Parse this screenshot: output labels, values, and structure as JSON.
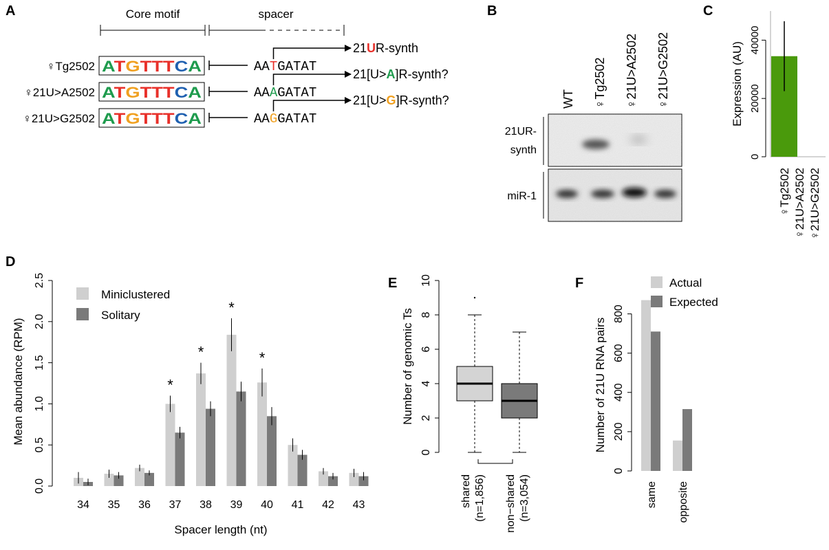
{
  "panels": {
    "A": {
      "label": "A",
      "core_header": "Core motif",
      "spacer_header": "spacer",
      "rows": [
        {
          "name": "♀Tg2502",
          "motif": "ATGTTTCA",
          "prefix": "AA",
          "var": "T",
          "suffix": "GATAT",
          "var_color": "#e8302a",
          "product_pre": "21",
          "product_mark": "U",
          "product_post": "R-synth",
          "mark_color": "#e8302a"
        },
        {
          "name": "♀21U>A2502",
          "motif": "ATGTTTCA",
          "prefix": "AA",
          "var": "A",
          "suffix": "GATAT",
          "var_color": "#1e9b4d",
          "product_pre": "21[U>",
          "product_mark": "A",
          "product_post": "]R-synth?",
          "mark_color": "#1e9b4d"
        },
        {
          "name": "♀21U>G2502",
          "motif": "ATGTTTCA",
          "prefix": "AA",
          "var": "G",
          "suffix": "GATAT",
          "var_color": "#f0a020",
          "product_pre": "21[U>",
          "product_mark": "G",
          "product_post": "]R-synth?",
          "mark_color": "#f0a020"
        }
      ],
      "motif_colors": [
        "#1e9b4d",
        "#e8302a",
        "#f0a020",
        "#e8302a",
        "#e8302a",
        "#e8302a",
        "#1f60b0",
        "#1e9b4d"
      ]
    },
    "B": {
      "label": "B",
      "lanes": [
        "WT",
        "♀Tg2502",
        "♀21U>A2502",
        "♀21U>G2502"
      ],
      "row_labels": [
        "21UR-",
        "synth",
        "miR-1"
      ]
    }
  },
  "chart_data": [
    {
      "panel": "C",
      "type": "bar",
      "categories": [
        "♀Tg2502",
        "♀21U>A2502",
        "♀21U>G2502"
      ],
      "values": [
        34500,
        0,
        0
      ],
      "error_low": [
        22500,
        0,
        0
      ],
      "error_high": [
        46500,
        0,
        0
      ],
      "ylabel": "Expression (AU)",
      "ylim": [
        0,
        50000
      ],
      "yticks": [
        "0",
        "20000",
        "40000"
      ],
      "ytick_values": [
        0,
        20000,
        40000
      ],
      "color": "#4a9a0c"
    },
    {
      "panel": "D",
      "type": "bar",
      "categories": [
        "34",
        "35",
        "36",
        "37",
        "38",
        "39",
        "40",
        "41",
        "42",
        "43"
      ],
      "series": [
        {
          "name": "Miniclustered",
          "color": "#cfcfcf",
          "values": [
            0.1,
            0.15,
            0.22,
            1.0,
            1.37,
            1.84,
            1.26,
            0.5,
            0.18,
            0.16
          ],
          "err": [
            0.07,
            0.05,
            0.04,
            0.1,
            0.13,
            0.2,
            0.17,
            0.08,
            0.04,
            0.05
          ]
        },
        {
          "name": "Solitary",
          "color": "#7a7a7a",
          "values": [
            0.05,
            0.13,
            0.16,
            0.65,
            0.94,
            1.15,
            0.85,
            0.38,
            0.12,
            0.12
          ],
          "err": [
            0.04,
            0.04,
            0.03,
            0.07,
            0.09,
            0.12,
            0.11,
            0.06,
            0.04,
            0.05
          ]
        }
      ],
      "significant": [
        false,
        false,
        false,
        true,
        true,
        true,
        true,
        false,
        false,
        false
      ],
      "star": "*",
      "xlabel": "Spacer length (nt)",
      "ylabel": "Mean abundance (RPM)",
      "ylim": [
        0,
        2.5
      ],
      "yticks": [
        "0.0",
        "0.5",
        "1.0",
        "1.5",
        "2.0",
        "2.5"
      ],
      "ytick_values": [
        0,
        0.5,
        1.0,
        1.5,
        2.0,
        2.5
      ],
      "legend": "top-left"
    },
    {
      "panel": "E",
      "type": "box",
      "groups": [
        {
          "name": "shared",
          "n": "(n=1,856)",
          "color": "#d4d4d4",
          "whisker_low": 0,
          "q1": 3,
          "median": 4,
          "q3": 5,
          "whisker_high": 8,
          "outliers": [
            9
          ]
        },
        {
          "name": "non−shared",
          "n": "(n=3,054)",
          "color": "#7a7a7a",
          "whisker_low": 0,
          "q1": 2,
          "median": 3,
          "q3": 4,
          "whisker_high": 7,
          "outliers": []
        }
      ],
      "ylabel": "Number of genomic Ts",
      "ylim": [
        0,
        10
      ],
      "yticks": [
        "0",
        "2",
        "4",
        "6",
        "8",
        "10"
      ],
      "ytick_values": [
        0,
        2,
        4,
        6,
        8,
        10
      ]
    },
    {
      "panel": "F",
      "type": "bar",
      "categories": [
        "same",
        "opposite"
      ],
      "series": [
        {
          "name": "Actual",
          "color": "#cfcfcf",
          "values": [
            870,
            155
          ]
        },
        {
          "name": "Expected",
          "color": "#7a7a7a",
          "values": [
            710,
            315
          ]
        }
      ],
      "ylabel": "Number of 21U RNA pairs",
      "ylim": [
        0,
        900
      ],
      "yticks": [
        "0",
        "200",
        "400",
        "600",
        "800"
      ],
      "ytick_values": [
        0,
        200,
        400,
        600,
        800
      ],
      "legend": "top"
    }
  ]
}
